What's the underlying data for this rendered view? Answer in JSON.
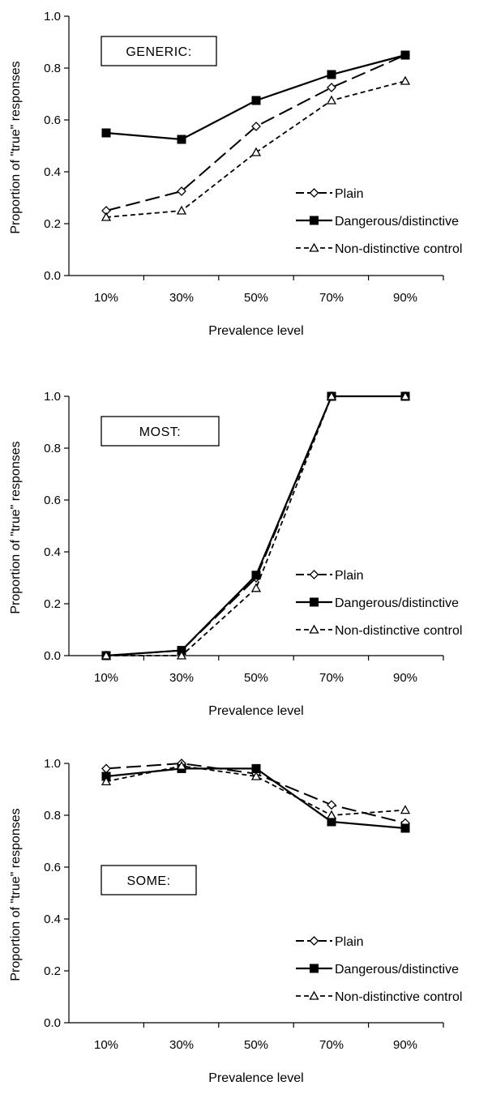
{
  "chart_data": [
    {
      "type": "line",
      "label": "GENERIC:",
      "categories": [
        "10%",
        "30%",
        "50%",
        "70%",
        "90%"
      ],
      "xlabel": "Prevalence level",
      "ylabel": "Proportion of \"true\" responses",
      "ylim": [
        0,
        1
      ],
      "yticks": [
        "0.0",
        "0.2",
        "0.4",
        "0.6",
        "0.8",
        "1.0"
      ],
      "grid": false,
      "legend_position": "right",
      "series": [
        {
          "name": "Plain",
          "values": [
            0.25,
            0.325,
            0.575,
            0.725,
            0.85
          ]
        },
        {
          "name": "Dangerous/distinctive",
          "values": [
            0.55,
            0.525,
            0.675,
            0.775,
            0.85
          ]
        },
        {
          "name": "Non-distinctive control",
          "values": [
            0.225,
            0.25,
            0.475,
            0.675,
            0.75
          ]
        }
      ]
    },
    {
      "type": "line",
      "label": "MOST:",
      "categories": [
        "10%",
        "30%",
        "50%",
        "70%",
        "90%"
      ],
      "xlabel": "Prevalence level",
      "ylabel": "Proportion of \"true\" responses",
      "ylim": [
        0,
        1
      ],
      "yticks": [
        "0.0",
        "0.2",
        "0.4",
        "0.6",
        "0.8",
        "1.0"
      ],
      "grid": false,
      "legend_position": "right",
      "series": [
        {
          "name": "Plain",
          "values": [
            0.0,
            0.02,
            0.3,
            1.0,
            1.0
          ]
        },
        {
          "name": "Dangerous/distinctive",
          "values": [
            0.0,
            0.02,
            0.31,
            1.0,
            1.0
          ]
        },
        {
          "name": "Non-distinctive control",
          "values": [
            0.0,
            0.0,
            0.26,
            1.0,
            1.0
          ]
        }
      ]
    },
    {
      "type": "line",
      "label": "SOME:",
      "categories": [
        "10%",
        "30%",
        "50%",
        "70%",
        "90%"
      ],
      "xlabel": "Prevalence level",
      "ylabel": "Proportion of \"true\" responses",
      "ylim": [
        0,
        1
      ],
      "yticks": [
        "0.0",
        "0.2",
        "0.4",
        "0.6",
        "0.8",
        "1.0"
      ],
      "grid": false,
      "legend_position": "right",
      "series": [
        {
          "name": "Plain",
          "values": [
            0.98,
            1.0,
            0.96,
            0.84,
            0.77
          ]
        },
        {
          "name": "Dangerous/distinctive",
          "values": [
            0.95,
            0.98,
            0.98,
            0.775,
            0.75
          ]
        },
        {
          "name": "Non-distinctive control",
          "values": [
            0.93,
            0.99,
            0.95,
            0.8,
            0.82
          ]
        }
      ]
    }
  ]
}
